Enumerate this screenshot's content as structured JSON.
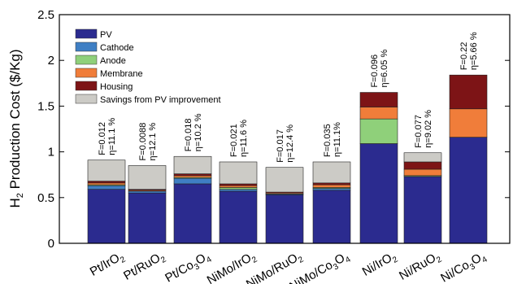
{
  "chart_data": {
    "type": "bar",
    "stacked": true,
    "title": "",
    "ylabel_main": "H",
    "ylabel_sub": "2",
    "ylabel_rest": " Production Cost ($/Kg)",
    "xlabel": "",
    "ylim": [
      0,
      2.5
    ],
    "yticks": [
      "0",
      "0.5",
      "1",
      "1.5",
      "2",
      "2.5"
    ],
    "ytick_values": [
      0,
      0.5,
      1,
      1.5,
      2,
      2.5
    ],
    "categories": [
      {
        "base": "Pt/IrO",
        "sub": "2"
      },
      {
        "base": "Pt/RuO",
        "sub": "2"
      },
      {
        "base": "Pt/Co",
        "sub": "3",
        "base2": "O",
        "sub2": "4"
      },
      {
        "base": "NiMo/IrO",
        "sub": "2"
      },
      {
        "base": "NiMo/RuO",
        "sub": "2"
      },
      {
        "base": "NiMo/Co",
        "sub": "3",
        "base2": "O",
        "sub2": "4"
      },
      {
        "base": "Ni/IrO",
        "sub": "2"
      },
      {
        "base": "Ni/RuO",
        "sub": "2"
      },
      {
        "base": "Ni/Co",
        "sub": "3",
        "base2": "O",
        "sub2": "4"
      }
    ],
    "series": [
      {
        "name": "PV",
        "color": "#2b2b8f",
        "values": [
          0.59,
          0.55,
          0.65,
          0.57,
          0.53,
          0.58,
          1.09,
          0.73,
          1.16
        ]
      },
      {
        "name": "Cathode",
        "color": "#3f7fc4",
        "values": [
          0.04,
          0.02,
          0.06,
          0.02,
          0.01,
          0.02,
          0.0,
          0.0,
          0.0
        ]
      },
      {
        "name": "Anode",
        "color": "#8fd07a",
        "values": [
          0.01,
          0.0,
          0.01,
          0.02,
          0.0,
          0.01,
          0.27,
          0.01,
          0.0
        ]
      },
      {
        "name": "Membrane",
        "color": "#f07d3a",
        "values": [
          0.02,
          0.01,
          0.02,
          0.02,
          0.01,
          0.03,
          0.13,
          0.07,
          0.31
        ]
      },
      {
        "name": "Housing",
        "color": "#7d1416",
        "values": [
          0.02,
          0.01,
          0.02,
          0.02,
          0.01,
          0.02,
          0.16,
          0.08,
          0.37
        ]
      },
      {
        "name": "Savings from PV improvement",
        "color": "#cccbc6",
        "values": [
          0.23,
          0.26,
          0.19,
          0.24,
          0.27,
          0.23,
          0.0,
          0.1,
          0.0
        ]
      }
    ],
    "annotations": [
      {
        "F": "F=0.012",
        "eta": "η=11.1 %"
      },
      {
        "F": "F=0.0088",
        "eta": "η=12.1 %"
      },
      {
        "F": "F=0.018",
        "eta": "η=10.2 %"
      },
      {
        "F": "F=0.021",
        "eta": "η=11.6 %"
      },
      {
        "F": "F=0.017",
        "eta": "η=12.4 %"
      },
      {
        "F": "F=0.035",
        "eta": "η=11.1%"
      },
      {
        "F": "F=0.096",
        "eta": "η=6.05 %"
      },
      {
        "F": "F=0.077",
        "eta": "η=9.02 %"
      },
      {
        "F": "F=0.22",
        "eta": "η=5.66 %"
      }
    ],
    "legend_position": "top-left",
    "grid": false
  }
}
